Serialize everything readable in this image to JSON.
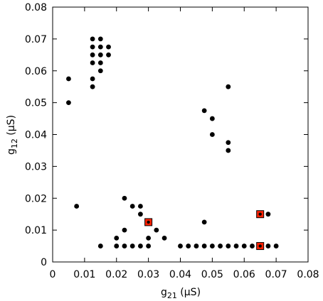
{
  "chart_data": {
    "type": "scatter",
    "title": "",
    "xlabel": {
      "base": "g",
      "sub": "21",
      "unit": " (µS)"
    },
    "ylabel": {
      "base": "g",
      "sub": "12",
      "unit": " (µS)"
    },
    "xlim": [
      0,
      0.08
    ],
    "ylim": [
      0,
      0.08
    ],
    "xticks": [
      "0",
      "0.01",
      "0.02",
      "0.03",
      "0.04",
      "0.05",
      "0.06",
      "0.07",
      "0.08"
    ],
    "yticks": [
      "0",
      "0.01",
      "0.02",
      "0.03",
      "0.04",
      "0.05",
      "0.06",
      "0.07",
      "0.08"
    ],
    "grid": false,
    "legend": "none",
    "series": [
      {
        "marker": "circle",
        "color": "#000000",
        "points": [
          [
            0.005,
            0.0575
          ],
          [
            0.005,
            0.05
          ],
          [
            0.0075,
            0.0175
          ],
          [
            0.0125,
            0.07
          ],
          [
            0.015,
            0.07
          ],
          [
            0.0125,
            0.0675
          ],
          [
            0.015,
            0.0675
          ],
          [
            0.0175,
            0.0675
          ],
          [
            0.0125,
            0.065
          ],
          [
            0.015,
            0.065
          ],
          [
            0.0175,
            0.065
          ],
          [
            0.0125,
            0.0625
          ],
          [
            0.015,
            0.0625
          ],
          [
            0.0125,
            0.0575
          ],
          [
            0.015,
            0.06
          ],
          [
            0.0125,
            0.055
          ],
          [
            0.015,
            0.005
          ],
          [
            0.02,
            0.0075
          ],
          [
            0.02,
            0.005
          ],
          [
            0.0225,
            0.02
          ],
          [
            0.0225,
            0.01
          ],
          [
            0.0225,
            0.005
          ],
          [
            0.025,
            0.0175
          ],
          [
            0.025,
            0.005
          ],
          [
            0.0275,
            0.0175
          ],
          [
            0.0275,
            0.015
          ],
          [
            0.0275,
            0.005
          ],
          [
            0.03,
            0.0125
          ],
          [
            0.03,
            0.0075
          ],
          [
            0.03,
            0.005
          ],
          [
            0.0325,
            0.01
          ],
          [
            0.035,
            0.0075
          ],
          [
            0.04,
            0.005
          ],
          [
            0.0425,
            0.005
          ],
          [
            0.045,
            0.005
          ],
          [
            0.0475,
            0.005
          ],
          [
            0.0475,
            0.0125
          ],
          [
            0.0475,
            0.0475
          ],
          [
            0.05,
            0.005
          ],
          [
            0.05,
            0.045
          ],
          [
            0.05,
            0.04
          ],
          [
            0.0525,
            0.005
          ],
          [
            0.055,
            0.005
          ],
          [
            0.055,
            0.055
          ],
          [
            0.055,
            0.0375
          ],
          [
            0.055,
            0.035
          ],
          [
            0.0575,
            0.005
          ],
          [
            0.06,
            0.005
          ],
          [
            0.0625,
            0.005
          ],
          [
            0.065,
            0.005
          ],
          [
            0.0675,
            0.005
          ],
          [
            0.0675,
            0.015
          ],
          [
            0.07,
            0.005
          ]
        ]
      },
      {
        "marker": "square",
        "color": "#ff2200",
        "points": [
          [
            0.03,
            0.0125
          ],
          [
            0.065,
            0.015
          ],
          [
            0.065,
            0.005
          ]
        ]
      }
    ]
  }
}
